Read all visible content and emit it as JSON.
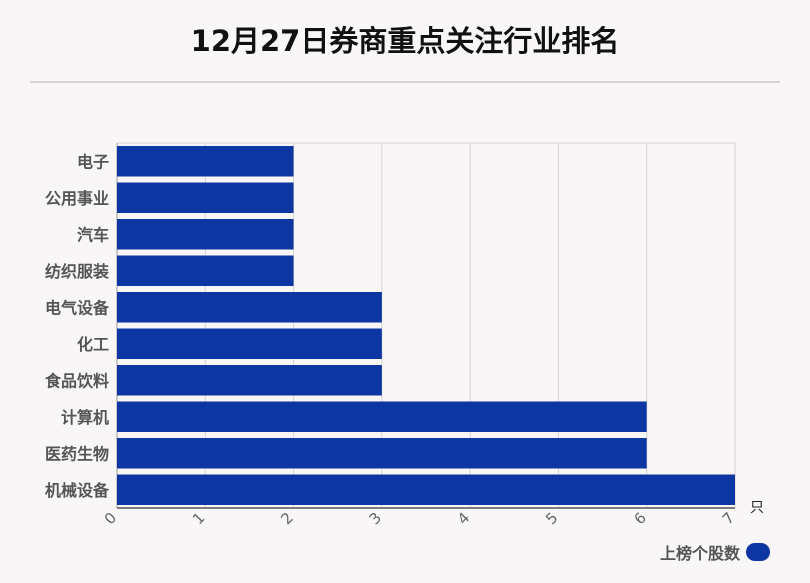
{
  "chart_data": {
    "type": "bar",
    "orientation": "horizontal",
    "title": "12月27日券商重点关注行业排名",
    "categories": [
      "电子",
      "公用事业",
      "汽车",
      "纺织服装",
      "电气设备",
      "化工",
      "食品饮料",
      "计算机",
      "医药生物",
      "机械设备"
    ],
    "series": [
      {
        "name": "上榜个股数",
        "values": [
          2,
          2,
          2,
          2,
          3,
          3,
          3,
          6,
          6,
          7
        ]
      }
    ],
    "xunit": "只",
    "xlim": [
      0,
      7
    ],
    "xticks": [
      "0",
      "1",
      "2",
      "3",
      "4",
      "5",
      "6",
      "7"
    ],
    "grid": true,
    "legend": "bottom-right",
    "bar_color": "#0e36a3"
  }
}
